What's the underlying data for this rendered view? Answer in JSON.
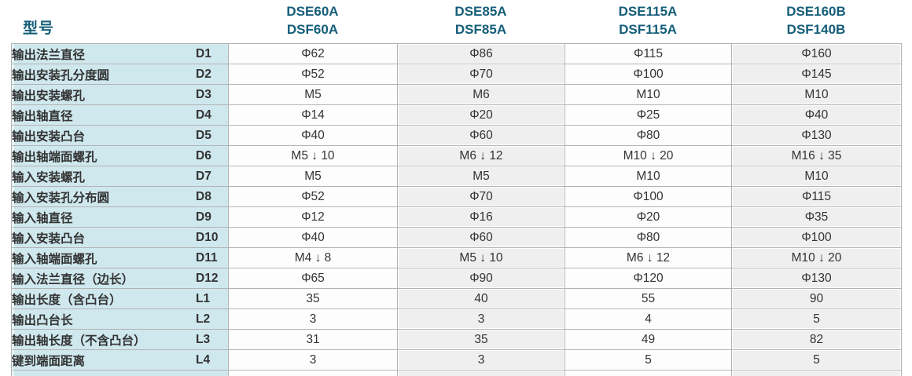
{
  "header": {
    "model_label": "型号",
    "columns": [
      {
        "line1": "DSE60A",
        "line2": "DSF60A"
      },
      {
        "line1": "DSE85A",
        "line2": "DSF85A"
      },
      {
        "line1": "DSE115A",
        "line2": "DSF115A"
      },
      {
        "line1": "DSE160B",
        "line2": "DSF140B"
      }
    ]
  },
  "table": {
    "rows": [
      {
        "label": "输出法兰直径",
        "code": "D1",
        "values": [
          "Φ62",
          "Φ86",
          "Φ115",
          "Φ160"
        ]
      },
      {
        "label": "输出安装孔分度圆",
        "code": "D2",
        "values": [
          "Φ52",
          "Φ70",
          "Φ100",
          "Φ145"
        ]
      },
      {
        "label": "输出安装螺孔",
        "code": "D3",
        "values": [
          "M5",
          "M6",
          "M10",
          "M10"
        ]
      },
      {
        "label": "输出轴直径",
        "code": "D4",
        "values": [
          "Φ14",
          "Φ20",
          "Φ25",
          "Φ40"
        ]
      },
      {
        "label": "输出安装凸台",
        "code": "D5",
        "values": [
          "Φ40",
          "Φ60",
          "Φ80",
          "Φ130"
        ]
      },
      {
        "label": "输出轴端面螺孔",
        "code": "D6",
        "values": [
          "M5 ↓ 10",
          "M6 ↓ 12",
          "M10 ↓ 20",
          "M16 ↓ 35"
        ]
      },
      {
        "label": "输入安装螺孔",
        "code": "D7",
        "values": [
          "M5",
          "M5",
          "M10",
          "M10"
        ]
      },
      {
        "label": "输入安装孔分布圆",
        "code": "D8",
        "values": [
          "Φ52",
          "Φ70",
          "Φ100",
          "Φ115"
        ]
      },
      {
        "label": "输入轴直径",
        "code": "D9",
        "values": [
          "Φ12",
          "Φ16",
          "Φ20",
          "Φ35"
        ]
      },
      {
        "label": "输入安装凸台",
        "code": "D10",
        "values": [
          "Φ40",
          "Φ60",
          "Φ80",
          "Φ100"
        ]
      },
      {
        "label": "输入轴端面螺孔",
        "code": "D11",
        "values": [
          "M4 ↓ 8",
          "M5 ↓ 10",
          "M6 ↓ 12",
          "M10 ↓ 20"
        ]
      },
      {
        "label": "输入法兰直径（边长）",
        "code": "D12",
        "values": [
          "Φ65",
          "Φ90",
          "Φ120",
          "Φ130"
        ]
      },
      {
        "label": "输出长度（含凸台）",
        "code": "L1",
        "values": [
          "35",
          "40",
          "55",
          "90"
        ]
      },
      {
        "label": "输出凸台长",
        "code": "L2",
        "values": [
          "3",
          "3",
          "4",
          "5"
        ]
      },
      {
        "label": "输出轴长度（不含凸台）",
        "code": "L3",
        "values": [
          "31",
          "35",
          "49",
          "82"
        ]
      },
      {
        "label": "键到端面距离",
        "code": "L4",
        "values": [
          "3",
          "3",
          "5",
          "5"
        ]
      }
    ],
    "has_partial_next_row": true
  },
  "colors": {
    "accent_teal": "#155e79",
    "label_cell_bg": "#cfe8ee",
    "alt_column_bg": "#efefef",
    "plain_column_bg": "#fdfdfd",
    "border": "#b3b3b3",
    "text": "#333333"
  }
}
